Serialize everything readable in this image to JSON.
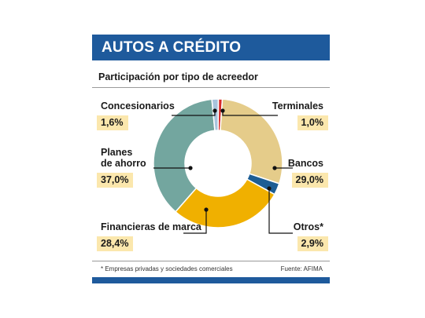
{
  "title": "AUTOS A CRÉDITO",
  "subtitle": "Participación por tipo de acreedor",
  "footnote": "* Empresas privadas y sociedades comerciales",
  "source": "Fuente: AFIMA",
  "colors": {
    "header": "#1e5a9c",
    "value_box": "#fbe7ad"
  },
  "chart_data": {
    "type": "pie",
    "subtype": "donut",
    "title": "AUTOS A CRÉDITO",
    "subtitle": "Participación por tipo de acreedor",
    "unit": "%",
    "slices": [
      {
        "name": "Terminales",
        "value": 1.0,
        "label": "1,0%",
        "color": "#d62b2b"
      },
      {
        "name": "Bancos",
        "value": 29.0,
        "label": "29,0%",
        "color": "#e5cc8a"
      },
      {
        "name": "Otros*",
        "value": 2.9,
        "label": "2,9%",
        "color": "#1d5d94"
      },
      {
        "name": "Financieras de marca",
        "value": 28.4,
        "label": "28,4%",
        "color": "#f0b000"
      },
      {
        "name": "Planes de ahorro",
        "value": 37.0,
        "label": "37,0%",
        "color": "#73a69f"
      },
      {
        "name": "Concesionarios",
        "value": 1.6,
        "label": "1,6%",
        "color": "#a8c4dc"
      }
    ]
  },
  "labels": {
    "concesionarios": {
      "name": "Concesionarios",
      "value": "1,6%"
    },
    "terminales": {
      "name": "Terminales",
      "value": "1,0%"
    },
    "planes": {
      "name_line1": "Planes",
      "name_line2": "de ahorro",
      "value": "37,0%"
    },
    "bancos": {
      "name": "Bancos",
      "value": "29,0%"
    },
    "financieras": {
      "name": "Financieras de marca",
      "value": "28,4%"
    },
    "otros": {
      "name": "Otros*",
      "value": "2,9%"
    }
  }
}
